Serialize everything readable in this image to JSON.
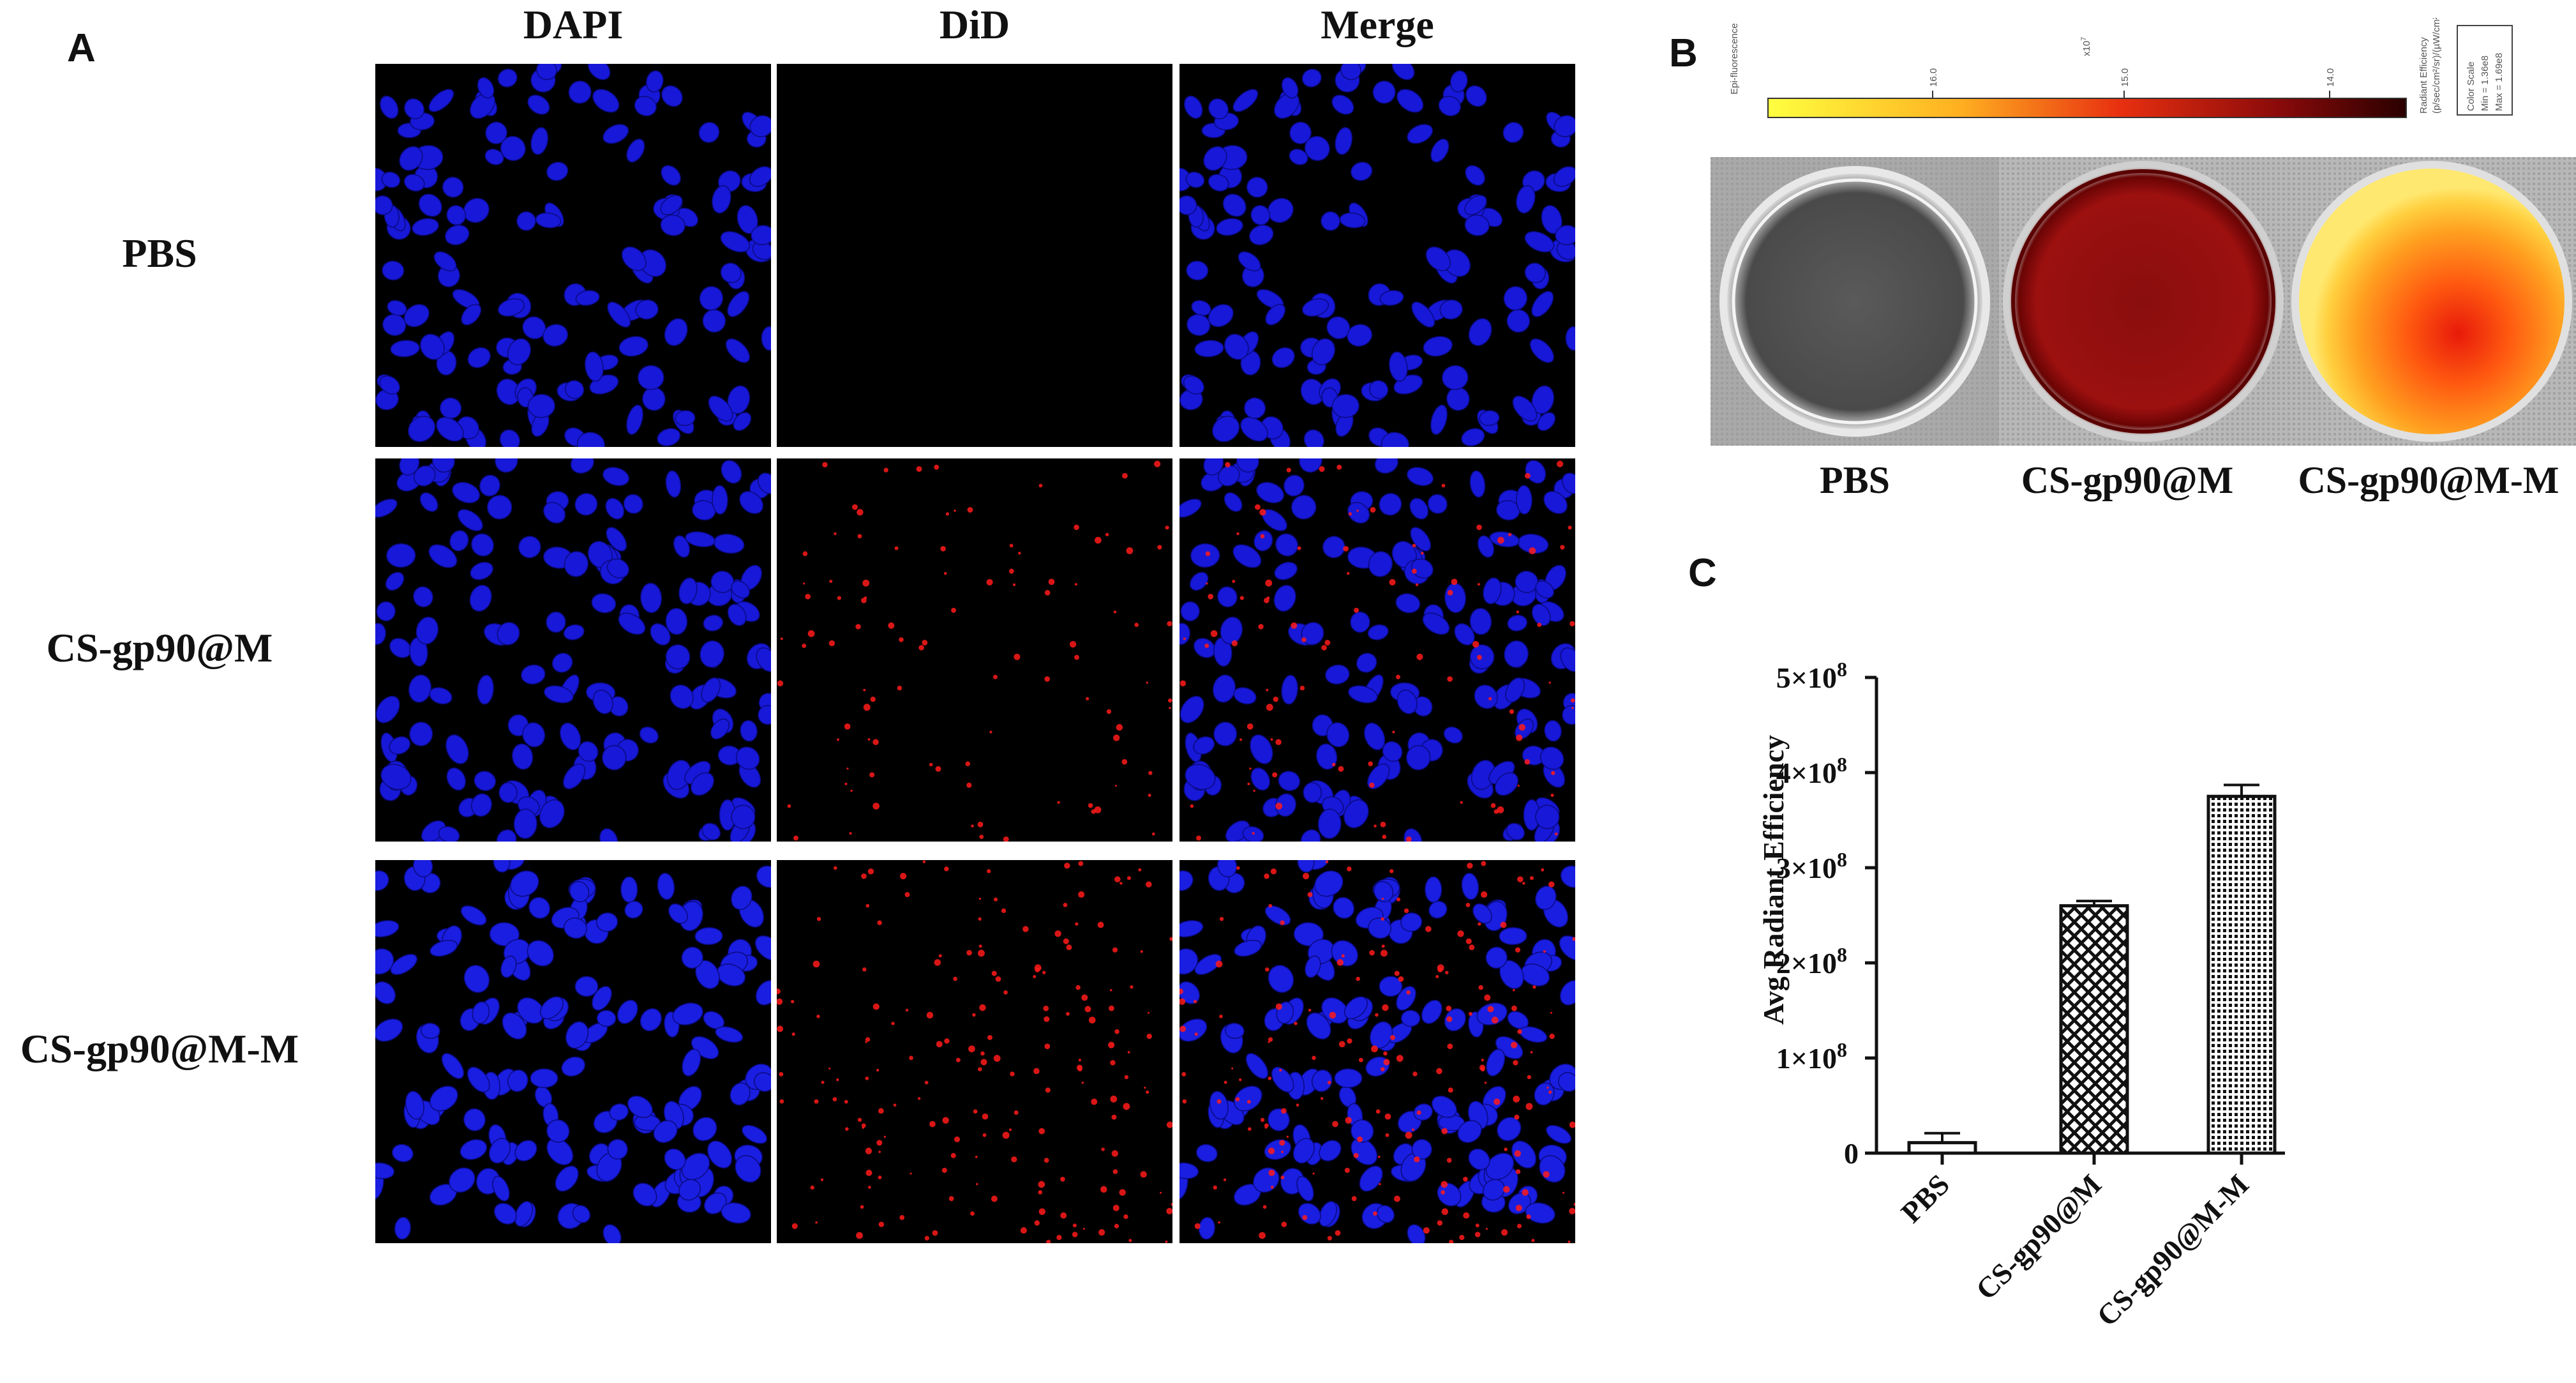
{
  "panel_a": {
    "label": "A",
    "columns": [
      "DAPI",
      "DiD",
      "Merge"
    ],
    "rows": [
      "PBS",
      "CS-gp90@M",
      "CS-gp90@M-M"
    ],
    "did_intensity": [
      0.0,
      0.45,
      0.85
    ]
  },
  "panel_b": {
    "label": "B",
    "colorbar": {
      "left_label": "Epi-fluorescence",
      "exponent": "x10",
      "exp_power": "7",
      "ticks": [
        "16.0",
        "15.0",
        "14.0"
      ],
      "unit_label": "Radiant Efficiency",
      "unit_detail": "(p/sec/cm²/sr)/(µW/cm²)",
      "scale_title": "Color Scale",
      "scale_min": "Min = 1.36e8",
      "scale_max": "Max = 1.69e8"
    },
    "wells": [
      "PBS",
      "CS-gp90@M",
      "CS-gp90@M-M"
    ]
  },
  "panel_c": {
    "label": "C",
    "chart_data": {
      "type": "bar",
      "categories": [
        "PBS",
        "CS-gp90@M",
        "CS-gp90@M-M"
      ],
      "values": [
        11000000.0,
        260000000.0,
        375000000.0
      ],
      "errors": [
        10000000.0,
        5000000.0,
        12000000.0
      ],
      "ylabel": "Avg Radiant Efficiency",
      "ylim": [
        0,
        500000000.0
      ],
      "yticks": [
        0,
        100000000.0,
        200000000.0,
        300000000.0,
        400000000.0,
        500000000.0
      ],
      "ytick_labels": [
        "0",
        "1×10",
        "2×10",
        "3×10",
        "4×10",
        "5×10"
      ],
      "ytick_exp": "8",
      "patterns": [
        "plain",
        "crosshatch",
        "dots"
      ]
    }
  }
}
